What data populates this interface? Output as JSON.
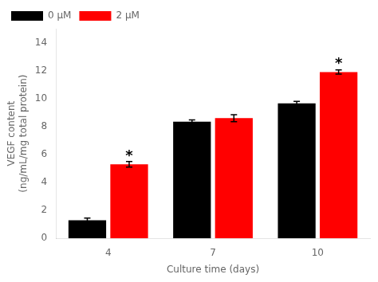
{
  "chart_data": {
    "type": "bar",
    "categories": [
      "4",
      "7",
      "10"
    ],
    "series": [
      {
        "name": "0 μM",
        "color": "#000000",
        "values": [
          1.3,
          8.35,
          9.65
        ],
        "errors": [
          0.15,
          0.12,
          0.15
        ]
      },
      {
        "name": "2 μM",
        "color": "#FF0000",
        "values": [
          5.3,
          8.6,
          11.9
        ],
        "errors": [
          0.2,
          0.25,
          0.15
        ]
      }
    ],
    "xlabel": "Culture time (days)",
    "ylabel": "VEGF content\n(ng/mL/mg total protein)",
    "ylim": [
      0,
      15
    ],
    "yticks": [
      0,
      2,
      4,
      6,
      8,
      10,
      12,
      14
    ],
    "grid": false,
    "legend": "upper left",
    "annotations": [
      {
        "text": "*",
        "category": "4",
        "series": "2 μM",
        "y": 5.6
      },
      {
        "text": "*",
        "category": "10",
        "series": "2 μM",
        "y": 12.2
      }
    ]
  }
}
